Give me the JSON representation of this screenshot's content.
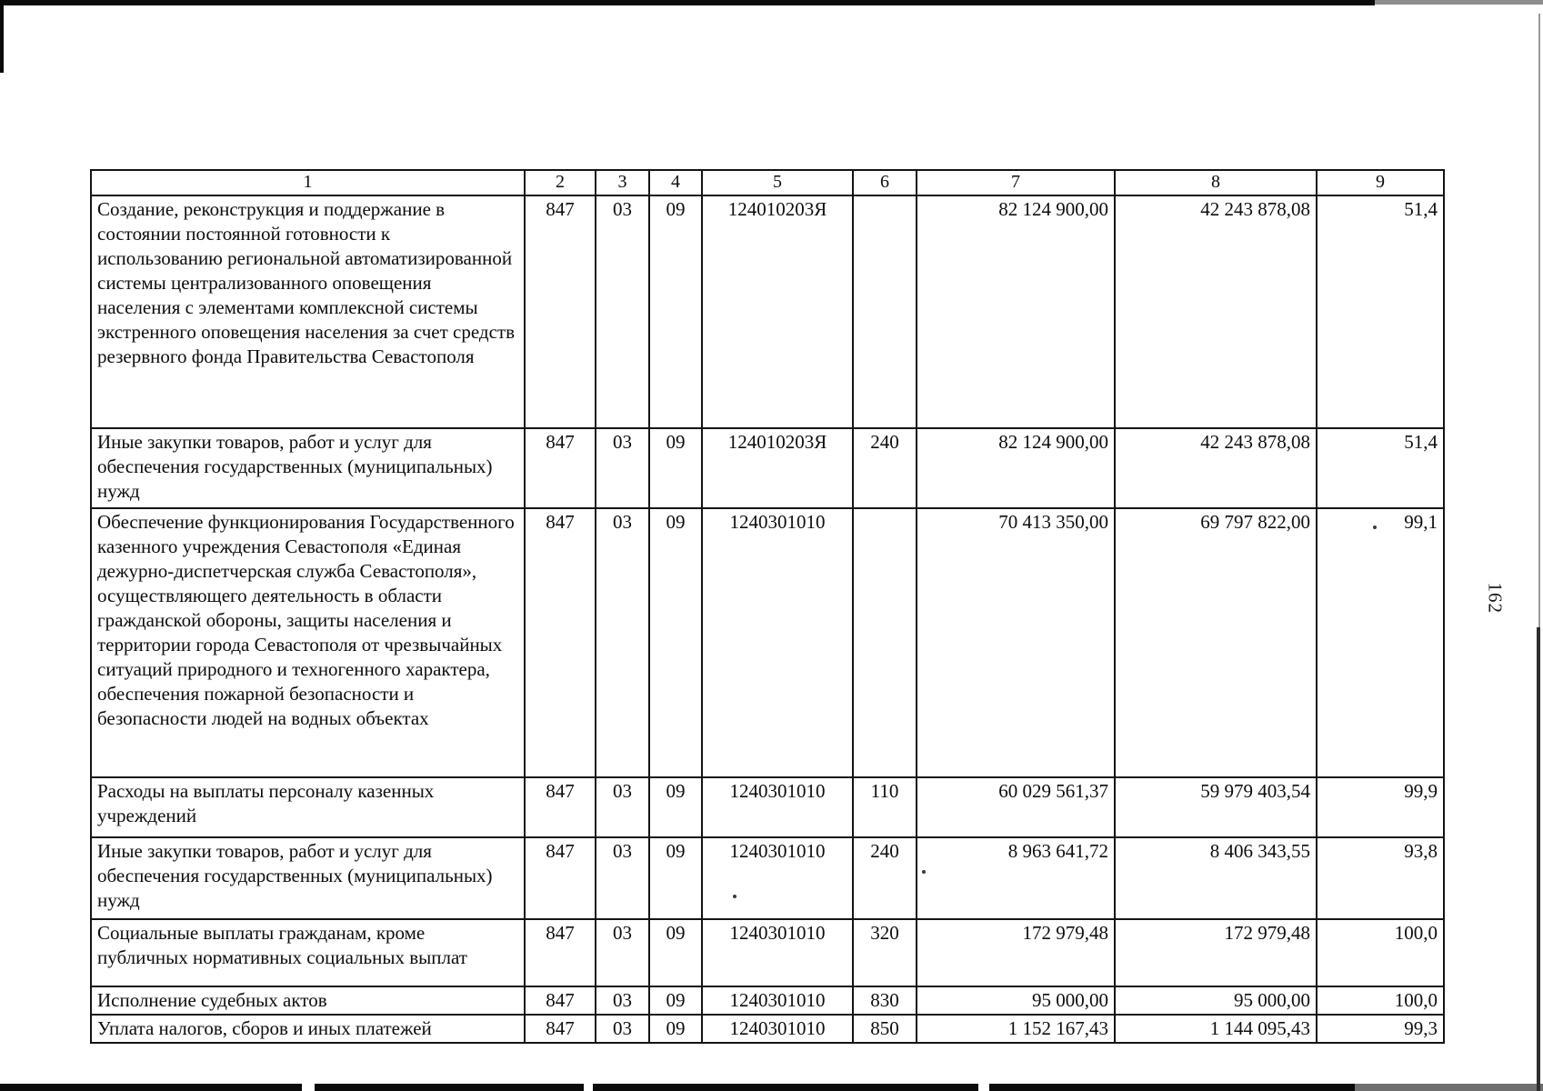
{
  "page_number": "162",
  "table": {
    "columns": [
      "1",
      "2",
      "3",
      "4",
      "5",
      "6",
      "7",
      "8",
      "9"
    ],
    "rows": [
      [
        "Создание, реконструкция и поддержание в состоянии постоянной готовности к использованию региональной автоматизированной системы централизованного оповещения населения с элементами комплексной системы экстренного оповещения населения за счет средств резервного фонда Правительства Севастополя",
        "847",
        "03",
        "09",
        "124010203Я",
        "",
        "82 124 900,00",
        "42 243 878,08",
        "51,4"
      ],
      [
        "Иные закупки товаров, работ и услуг для обеспечения государственных (муниципальных) нужд",
        "847",
        "03",
        "09",
        "124010203Я",
        "240",
        "82 124 900,00",
        "42 243 878,08",
        "51,4"
      ],
      [
        "Обеспечение функционирования Государственного казенного учреждения Севастополя «Единая дежурно-диспетчерская служба Севастополя», осуществляющего деятельность в области гражданской обороны, защиты населения и территории города Севастополя от чрезвычайных ситуаций природного и техногенного характера, обеспечения пожарной безопасности и безопасности людей на водных объектах",
        "847",
        "03",
        "09",
        "1240301010",
        "",
        "70 413 350,00",
        "69 797 822,00",
        "99,1"
      ],
      [
        "Расходы на выплаты персоналу казенных учреждений",
        "847",
        "03",
        "09",
        "1240301010",
        "110",
        "60 029 561,37",
        "59 979 403,54",
        "99,9"
      ],
      [
        "Иные закупки товаров, работ и услуг для обеспечения государственных (муниципальных) нужд",
        "847",
        "03",
        "09",
        "1240301010",
        "240",
        "8 963 641,72",
        "8 406 343,55",
        "93,8"
      ],
      [
        "Социальные выплаты гражданам, кроме публичных нормативных социальных выплат",
        "847",
        "03",
        "09",
        "1240301010",
        "320",
        "172 979,48",
        "172 979,48",
        "100,0"
      ],
      [
        "Исполнение судебных актов",
        "847",
        "03",
        "09",
        "1240301010",
        "830",
        "95 000,00",
        "95 000,00",
        "100,0"
      ],
      [
        "Уплата налогов, сборов и иных платежей",
        "847",
        "03",
        "09",
        "1240301010",
        "850",
        "1 152 167,43",
        "1 144 095,43",
        "99,3"
      ]
    ]
  }
}
